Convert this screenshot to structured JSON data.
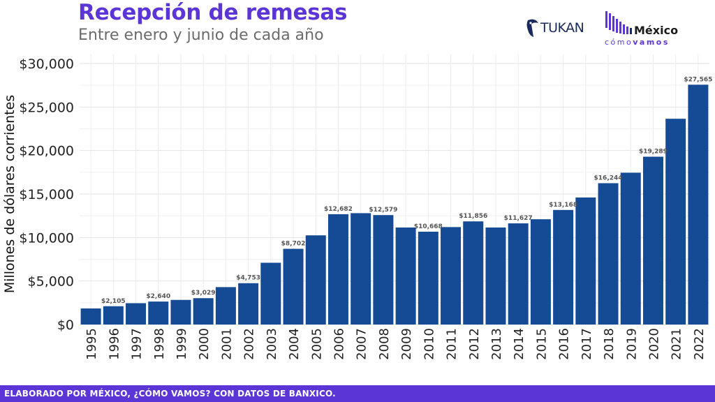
{
  "header": {
    "title": "Recepción de remesas",
    "subtitle": "Entre enero y junio de cada año"
  },
  "logos": {
    "tukan": "TUKAN",
    "mcv_word": "México",
    "mcv_sub_a": "cómo",
    "mcv_sub_b": "vamos"
  },
  "footer": {
    "text": "ELABORADO POR MÉXICO, ¿CÓMO VAMOS? CON DATOS DE BANXICO."
  },
  "colors": {
    "bar": "#154a94",
    "accent": "#5b35d5"
  },
  "chart_data": {
    "type": "bar",
    "title": "Recepción de remesas",
    "subtitle": "Entre enero y junio de cada año",
    "xlabel": "",
    "ylabel": "Millones de dólares corrientes",
    "ylim": [
      0,
      30000
    ],
    "yticks": [
      0,
      5000,
      10000,
      15000,
      20000,
      25000,
      30000
    ],
    "ytick_labels": [
      "$0",
      "$5,000",
      "$10,000",
      "$15,000",
      "$20,000",
      "$25,000",
      "$30,000"
    ],
    "grid": true,
    "categories": [
      "1995",
      "1996",
      "1997",
      "1998",
      "1999",
      "2000",
      "2001",
      "2002",
      "2003",
      "2004",
      "2005",
      "2006",
      "2007",
      "2008",
      "2009",
      "2010",
      "2011",
      "2012",
      "2013",
      "2014",
      "2015",
      "2016",
      "2017",
      "2018",
      "2019",
      "2020",
      "2021",
      "2022"
    ],
    "values": [
      1850,
      2105,
      2450,
      2640,
      2830,
      3029,
      4300,
      4753,
      7100,
      8702,
      10250,
      12682,
      12800,
      12579,
      11150,
      10668,
      11200,
      11856,
      11150,
      11627,
      12100,
      13168,
      14600,
      16244,
      17450,
      19289,
      23650,
      27565
    ],
    "data_labels": [
      "",
      "$2,105",
      "",
      "$2,640",
      "",
      "$3,029",
      "",
      "$4,753",
      "",
      "$8,702",
      "",
      "$12,682",
      "",
      "$12,579",
      "",
      "$10,668",
      "",
      "$11,856",
      "",
      "$11,627",
      "",
      "$13,168",
      "",
      "$16,244",
      "",
      "$19,289",
      "",
      "$27,565"
    ]
  }
}
